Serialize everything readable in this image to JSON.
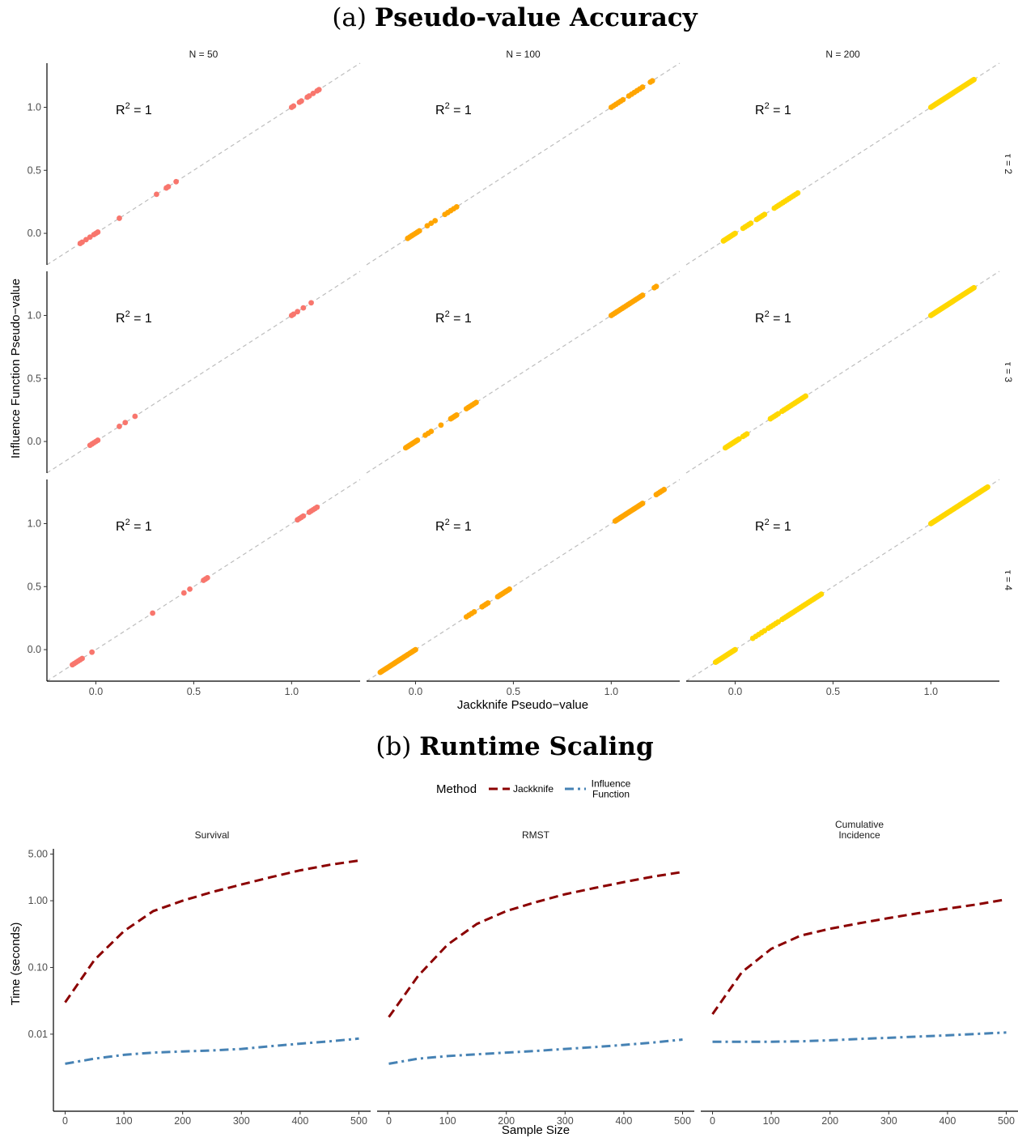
{
  "chart_data": [
    {
      "type": "scatter",
      "title_prefix": "(a)",
      "title": "Pseudo-value Accuracy",
      "xlabel": "Jackknife Pseudo−value",
      "ylabel": "Influence Function Pseudo−value",
      "col_labels": [
        "N = 50",
        "N = 100",
        "N = 200"
      ],
      "row_labels": [
        "τ = 2",
        "τ = 3",
        "τ = 4"
      ],
      "col_colors": [
        "#f8766d",
        "#ffa500",
        "#ffd700"
      ],
      "annotation": {
        "base": "R",
        "sup": "2",
        "rest": " = 1"
      },
      "xlim": [
        -0.25,
        1.35
      ],
      "ylim": [
        -0.25,
        1.35
      ],
      "xticks": [
        0.0,
        0.5,
        1.0
      ],
      "yticks": [
        0.0,
        0.5,
        1.0
      ],
      "tick_labels": [
        "0.0",
        "0.5",
        "1.0"
      ],
      "reference_line": "y = x (dashed, grey)",
      "grid": false,
      "panels": [
        {
          "row": 0,
          "col": 0,
          "values": [
            -0.08,
            -0.07,
            -0.05,
            -0.03,
            -0.01,
            0.0,
            0.01,
            0.12,
            0.31,
            0.36,
            0.37,
            0.41,
            1.0,
            1.01,
            1.04,
            1.05,
            1.08,
            1.09,
            1.11,
            1.13,
            1.14
          ]
        },
        {
          "row": 0,
          "col": 1,
          "ranges": [
            [
              -0.04,
              0.02,
              7
            ],
            [
              0.06,
              0.1,
              3
            ],
            [
              0.15,
              0.21,
              5
            ],
            [
              1.0,
              1.06,
              6
            ],
            [
              1.09,
              1.16,
              6
            ],
            [
              1.2,
              1.21,
              2
            ]
          ]
        },
        {
          "row": 0,
          "col": 2,
          "ranges": [
            [
              -0.06,
              0.0,
              12
            ],
            [
              0.04,
              0.08,
              5
            ],
            [
              0.11,
              0.15,
              5
            ],
            [
              0.2,
              0.32,
              12
            ],
            [
              1.0,
              1.22,
              40
            ]
          ]
        },
        {
          "row": 1,
          "col": 0,
          "values": [
            -0.03,
            -0.02,
            -0.01,
            0.0,
            0.01,
            0.12,
            0.15,
            0.2,
            1.0,
            1.01,
            1.03,
            1.06,
            1.1
          ]
        },
        {
          "row": 1,
          "col": 1,
          "ranges": [
            [
              -0.05,
              0.01,
              10
            ],
            [
              0.05,
              0.08,
              3
            ],
            [
              0.13,
              0.13,
              1
            ],
            [
              0.18,
              0.21,
              5
            ],
            [
              0.26,
              0.31,
              6
            ],
            [
              1.0,
              1.16,
              18
            ],
            [
              1.22,
              1.23,
              2
            ]
          ]
        },
        {
          "row": 1,
          "col": 2,
          "ranges": [
            [
              -0.05,
              0.02,
              12
            ],
            [
              0.04,
              0.06,
              3
            ],
            [
              0.18,
              0.22,
              5
            ],
            [
              0.24,
              0.36,
              14
            ],
            [
              1.0,
              1.22,
              40
            ]
          ]
        },
        {
          "row": 2,
          "col": 0,
          "values": [
            -0.11,
            -0.12,
            -0.1,
            -0.09,
            -0.08,
            -0.07,
            -0.02,
            0.29,
            0.45,
            0.48,
            0.55,
            0.56,
            0.57,
            1.03,
            1.04,
            1.05,
            1.06,
            1.09,
            1.1,
            1.12,
            1.11,
            1.13
          ]
        },
        {
          "row": 2,
          "col": 1,
          "ranges": [
            [
              -0.18,
              -0.04,
              22
            ],
            [
              -0.03,
              0.0,
              5
            ],
            [
              0.26,
              0.3,
              4
            ],
            [
              0.34,
              0.37,
              4
            ],
            [
              0.42,
              0.48,
              8
            ],
            [
              1.02,
              1.16,
              22
            ],
            [
              1.23,
              1.27,
              5
            ]
          ]
        },
        {
          "row": 2,
          "col": 2,
          "ranges": [
            [
              -0.1,
              0.0,
              20
            ],
            [
              0.09,
              0.15,
              5
            ],
            [
              0.17,
              0.22,
              5
            ],
            [
              0.24,
              0.44,
              22
            ],
            [
              1.0,
              1.29,
              50
            ]
          ]
        }
      ]
    },
    {
      "type": "line",
      "title_prefix": "(b)",
      "title": "Runtime Scaling",
      "xlabel": "Sample Size",
      "ylabel": "Time (seconds)",
      "y_scale": "log10",
      "ylim": [
        0.0007,
        6.0
      ],
      "yticks": [
        0.01,
        0.1,
        1.0,
        5.0
      ],
      "ytick_labels": [
        "0.01",
        "0.10",
        "1.00",
        "5.00"
      ],
      "xlim": [
        -20,
        520
      ],
      "xticks": [
        0,
        100,
        200,
        300,
        400,
        500
      ],
      "xtick_labels": [
        "0",
        "100",
        "200",
        "300",
        "400",
        "500"
      ],
      "grid": false,
      "legend": {
        "title": "Method",
        "position": "top",
        "entries": [
          "Jackknife",
          "Influence\nFunction"
        ]
      },
      "panels": [
        {
          "label": "Survival",
          "label_lines": [
            "Survival"
          ]
        },
        {
          "label": "RMST",
          "label_lines": [
            "RMST"
          ]
        },
        {
          "label": "Cumulative Incidence",
          "label_lines": [
            "Cumulative",
            "Incidence"
          ]
        }
      ],
      "x": [
        0,
        50,
        100,
        150,
        200,
        250,
        300,
        350,
        400,
        450,
        500
      ],
      "series": [
        {
          "name": "Jackknife",
          "color": "#8b0000",
          "dash": "long-dash",
          "values_by_panel": [
            [
              0.03,
              0.13,
              0.35,
              0.7,
              1.0,
              1.35,
              1.75,
              2.25,
              2.85,
              3.45,
              4.0
            ],
            [
              0.018,
              0.075,
              0.22,
              0.45,
              0.7,
              0.95,
              1.25,
              1.55,
              1.9,
              2.3,
              2.7
            ],
            [
              0.02,
              0.085,
              0.19,
              0.3,
              0.38,
              0.46,
              0.55,
              0.65,
              0.76,
              0.88,
              1.05
            ]
          ]
        },
        {
          "name": "Influence\nFunction",
          "color": "#4682b4",
          "dash": "dot-dash",
          "values_by_panel": [
            [
              0.0036,
              0.0043,
              0.0049,
              0.0053,
              0.0055,
              0.0057,
              0.006,
              0.0066,
              0.0072,
              0.0078,
              0.0086
            ],
            [
              0.0036,
              0.0043,
              0.0047,
              0.005,
              0.0053,
              0.0056,
              0.006,
              0.0064,
              0.0069,
              0.0075,
              0.0083
            ],
            [
              0.0077,
              0.0077,
              0.0077,
              0.0078,
              0.0081,
              0.0085,
              0.0088,
              0.0092,
              0.0096,
              0.0101,
              0.0106
            ]
          ]
        }
      ]
    }
  ]
}
